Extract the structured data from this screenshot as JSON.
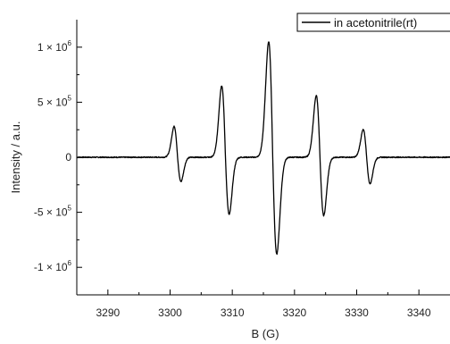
{
  "chart_data": {
    "type": "line",
    "xlabel": "B (G)",
    "ylabel": "Intensity / a.u.",
    "xlim": [
      3285,
      3345
    ],
    "ylim": [
      -1250000,
      1250000
    ],
    "x_ticks": [
      3290,
      3300,
      3310,
      3320,
      3330,
      3340
    ],
    "y_ticks": [
      {
        "value": 1000000,
        "mantissa": "1 × 10",
        "exp": "6"
      },
      {
        "value": 500000,
        "mantissa": "5 × 10",
        "exp": "5"
      },
      {
        "value": 0,
        "mantissa": "0",
        "exp": ""
      },
      {
        "value": -500000,
        "mantissa": "-5 × 10",
        "exp": "5"
      },
      {
        "value": -1000000,
        "mantissa": "-1 × 10",
        "exp": "6"
      }
    ],
    "legend": {
      "position": "top-right"
    },
    "grid": false,
    "line_color": "#000000",
    "series": [
      {
        "name": "in acetonitrile(rt)",
        "peaks": [
          {
            "center": 3301.2,
            "width": 0.55,
            "max": 280000,
            "min": -220000
          },
          {
            "center": 3308.9,
            "width": 0.6,
            "max": 650000,
            "min": -520000
          },
          {
            "center": 3316.5,
            "width": 0.65,
            "max": 1050000,
            "min": -880000
          },
          {
            "center": 3324.1,
            "width": 0.6,
            "max": 560000,
            "min": -530000
          },
          {
            "center": 3331.6,
            "width": 0.55,
            "max": 250000,
            "min": -240000
          }
        ]
      }
    ]
  }
}
